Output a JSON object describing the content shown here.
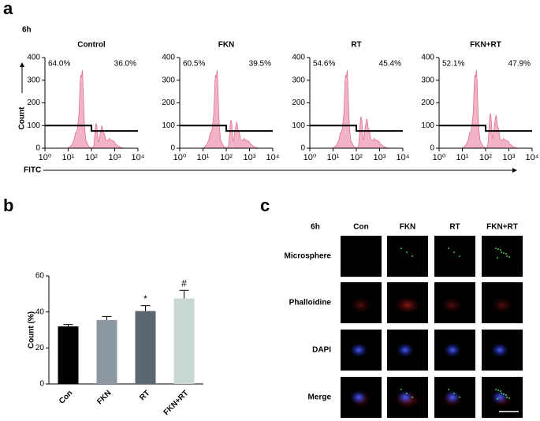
{
  "panel_labels": [
    "a",
    "b",
    "c"
  ],
  "flow_panel": {
    "time": "6h",
    "ylabel": "Count",
    "xlabel": "FITC"
  },
  "chart_data": [
    {
      "type": "flow",
      "title": "Control",
      "gates": {
        "values": [
          64.0,
          36.0
        ],
        "value_labels": [
          "64.0%",
          "36.0%"
        ]
      },
      "xlim": [
        1,
        10000
      ],
      "xlog": true,
      "ylim": [
        0,
        400
      ],
      "yticks": [
        0,
        100,
        200,
        300,
        400
      ],
      "xticks": [
        {
          "value": 1,
          "label": "10⁰"
        },
        {
          "value": 10,
          "label": "10¹"
        },
        {
          "value": 100,
          "label": "10²"
        },
        {
          "value": 1000,
          "label": "10³"
        },
        {
          "value": 10000,
          "label": "10⁴"
        }
      ],
      "color": "#f2b3c6"
    },
    {
      "type": "flow",
      "title": "FKN",
      "gates": {
        "values": [
          60.5,
          39.5
        ],
        "value_labels": [
          "60.5%",
          "39.5%"
        ]
      },
      "xlim": [
        1,
        10000
      ],
      "xlog": true,
      "ylim": [
        0,
        400
      ],
      "yticks": [
        0,
        100,
        200,
        300,
        400
      ],
      "xticks": [
        {
          "value": 1,
          "label": "10⁰"
        },
        {
          "value": 10,
          "label": "10¹"
        },
        {
          "value": 100,
          "label": "10²"
        },
        {
          "value": 1000,
          "label": "10³"
        },
        {
          "value": 10000,
          "label": "10⁴"
        }
      ],
      "color": "#f2b3c6"
    },
    {
      "type": "flow",
      "title": "RT",
      "gates": {
        "values": [
          54.6,
          45.4
        ],
        "value_labels": [
          "54.6%",
          "45.4%"
        ]
      },
      "xlim": [
        1,
        10000
      ],
      "xlog": true,
      "ylim": [
        0,
        400
      ],
      "yticks": [
        0,
        100,
        200,
        300,
        400
      ],
      "xticks": [
        {
          "value": 1,
          "label": "10⁰"
        },
        {
          "value": 10,
          "label": "10¹"
        },
        {
          "value": 100,
          "label": "10²"
        },
        {
          "value": 1000,
          "label": "10³"
        },
        {
          "value": 10000,
          "label": "10⁴"
        }
      ],
      "color": "#f2b3c6"
    },
    {
      "type": "flow",
      "title": "FKN+RT",
      "gates": {
        "values": [
          52.1,
          47.9
        ],
        "value_labels": [
          "52.1%",
          "47.9%"
        ]
      },
      "xlim": [
        1,
        10000
      ],
      "xlog": true,
      "ylim": [
        0,
        400
      ],
      "yticks": [
        0,
        100,
        200,
        300,
        400
      ],
      "xticks": [
        {
          "value": 1,
          "label": "10⁰"
        },
        {
          "value": 10,
          "label": "10¹"
        },
        {
          "value": 100,
          "label": "10²"
        },
        {
          "value": 1000,
          "label": "10³"
        },
        {
          "value": 10000,
          "label": "10⁴"
        }
      ],
      "color": "#f2b3c6"
    },
    {
      "type": "bar",
      "ylabel": "Count (%)",
      "categories": [
        "Con",
        "FKN",
        "RT",
        "FKN+RT"
      ],
      "values": [
        32,
        35.5,
        40.5,
        47.5
      ],
      "errors": [
        1,
        2,
        3,
        4.5
      ],
      "colors": [
        "#000000",
        "#8d979f",
        "#5b6771",
        "#c9d9d1"
      ],
      "value_annotations": [
        null,
        null,
        "*",
        "#"
      ],
      "ylim": [
        0,
        60
      ],
      "yticks": [
        0,
        20,
        40,
        60
      ]
    }
  ],
  "microscopy": {
    "time": "6h",
    "columns": [
      "Con",
      "FKN",
      "RT",
      "FKN+RT"
    ],
    "rows": [
      "Microsphere",
      "Phalloidine",
      "DAPI",
      "Merge"
    ]
  }
}
